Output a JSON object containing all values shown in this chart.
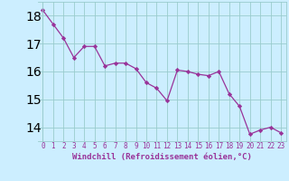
{
  "x": [
    0,
    1,
    2,
    3,
    4,
    5,
    6,
    7,
    8,
    9,
    10,
    11,
    12,
    13,
    14,
    15,
    16,
    17,
    18,
    19,
    20,
    21,
    22,
    23
  ],
  "y": [
    18.2,
    17.7,
    17.2,
    16.5,
    16.9,
    16.9,
    16.2,
    16.3,
    16.3,
    16.1,
    15.6,
    15.4,
    14.95,
    16.05,
    16.0,
    15.9,
    15.85,
    16.0,
    15.2,
    14.75,
    13.75,
    13.9,
    14.0,
    13.8
  ],
  "line_color": "#993399",
  "marker": "D",
  "marker_size": 2.2,
  "bg_color": "#cceeff",
  "grid_color": "#99cccc",
  "xlabel": "Windchill (Refroidissement éolien,°C)",
  "xlabel_color": "#993399",
  "tick_color": "#993399",
  "ylim": [
    13.5,
    18.5
  ],
  "xlim": [
    -0.5,
    23.5
  ],
  "yticks": [
    14,
    15,
    16,
    17,
    18
  ],
  "xticks": [
    0,
    1,
    2,
    3,
    4,
    5,
    6,
    7,
    8,
    9,
    10,
    11,
    12,
    13,
    14,
    15,
    16,
    17,
    18,
    19,
    20,
    21,
    22,
    23
  ],
  "tick_fontsize": 5.5,
  "xlabel_fontsize": 6.5,
  "ylabel_fontsize": 6.0
}
